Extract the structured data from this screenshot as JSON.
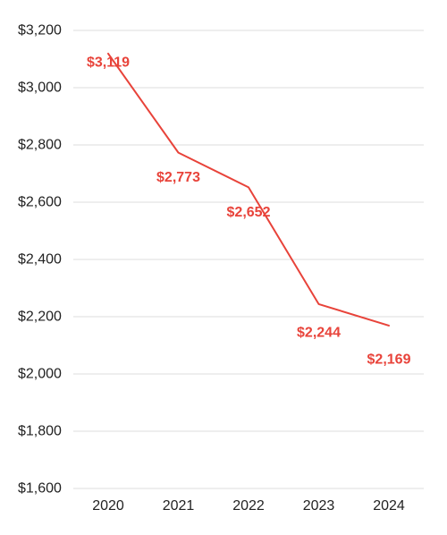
{
  "chart_data": {
    "type": "line",
    "title": "",
    "xlabel": "",
    "ylabel": "",
    "categories": [
      "2020",
      "2021",
      "2022",
      "2023",
      "2024"
    ],
    "series": [
      {
        "values": [
          3119,
          2773,
          2652,
          2244,
          2169
        ],
        "data_labels": [
          "$3,119",
          "$2,773",
          "$2,652",
          "$2,244",
          "$2,169"
        ]
      }
    ],
    "ylim": [
      1600,
      3200
    ],
    "y_ticks": [
      1600,
      1800,
      2000,
      2200,
      2400,
      2600,
      2800,
      3000,
      3200
    ],
    "y_tick_labels": [
      "$1,600",
      "$1,800",
      "$2,000",
      "$2,200",
      "$2,400",
      "$2,600",
      "$2,800",
      "$3,000",
      "$3,200"
    ],
    "grid": true,
    "legend": "none",
    "colors": {
      "series": "#e8433a",
      "grid": "#dcdcdc",
      "text": "#222222"
    }
  }
}
